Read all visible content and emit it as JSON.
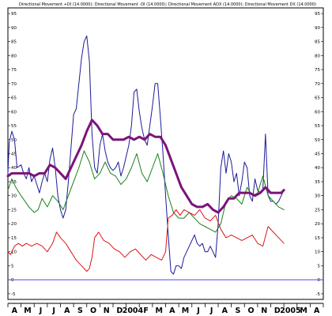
{
  "chart_data": {
    "type": "line",
    "title": "Directional Movement +DI (14.0000); Directional Movement -DI (14.0000); Directional Movement ADX (14.0000); Directional Movement DX (14.0000)",
    "ylim": [
      -7,
      97
    ],
    "yticks": [
      -5,
      0,
      5,
      10,
      15,
      20,
      25,
      30,
      35,
      40,
      45,
      50,
      55,
      60,
      65,
      70,
      75,
      80,
      85,
      90,
      95
    ],
    "xlim": [
      0,
      24
    ],
    "xticks": [
      {
        "x": 0.5,
        "label": "A"
      },
      {
        "x": 1.5,
        "label": "M"
      },
      {
        "x": 2.5,
        "label": "J"
      },
      {
        "x": 3.5,
        "label": "J"
      },
      {
        "x": 4.5,
        "label": "A"
      },
      {
        "x": 5.5,
        "label": "S"
      },
      {
        "x": 6.5,
        "label": "O"
      },
      {
        "x": 7.5,
        "label": "N"
      },
      {
        "x": 8.5,
        "label": "D"
      },
      {
        "x": 9.5,
        "label": "2004"
      },
      {
        "x": 10.5,
        "label": "F"
      },
      {
        "x": 11.5,
        "label": "M"
      },
      {
        "x": 12.5,
        "label": "A"
      },
      {
        "x": 13.5,
        "label": "M"
      },
      {
        "x": 14.5,
        "label": "J"
      },
      {
        "x": 15.5,
        "label": "J"
      },
      {
        "x": 16.5,
        "label": "A"
      },
      {
        "x": 17.5,
        "label": "S"
      },
      {
        "x": 18.5,
        "label": "O"
      },
      {
        "x": 19.5,
        "label": "N"
      },
      {
        "x": 20.5,
        "label": "D"
      },
      {
        "x": 21.5,
        "label": "2005"
      },
      {
        "x": 22.5,
        "label": "M"
      },
      {
        "x": 23.5,
        "label": "A"
      }
    ],
    "reference_line": {
      "y": 0,
      "color": "#4a4adf"
    },
    "grid": false,
    "legend": "none",
    "series": [
      {
        "color": "#1c1c9a",
        "width": 1,
        "points": [
          [
            0,
            38
          ],
          [
            0.1,
            49
          ],
          [
            0.3,
            53
          ],
          [
            0.5,
            50
          ],
          [
            0.7,
            40
          ],
          [
            1,
            41
          ],
          [
            1.2,
            38
          ],
          [
            1.4,
            36
          ],
          [
            1.6,
            40
          ],
          [
            1.8,
            35
          ],
          [
            2,
            37
          ],
          [
            2.2,
            34
          ],
          [
            2.4,
            31
          ],
          [
            2.6,
            35
          ],
          [
            2.8,
            38
          ],
          [
            3,
            35
          ],
          [
            3.2,
            43
          ],
          [
            3.4,
            47
          ],
          [
            3.6,
            40
          ],
          [
            3.8,
            30
          ],
          [
            4,
            25
          ],
          [
            4.2,
            22
          ],
          [
            4.4,
            25
          ],
          [
            4.6,
            35
          ],
          [
            4.8,
            47
          ],
          [
            5,
            59
          ],
          [
            5.2,
            61
          ],
          [
            5.4,
            70
          ],
          [
            5.6,
            79
          ],
          [
            5.8,
            85
          ],
          [
            6,
            87
          ],
          [
            6.2,
            78
          ],
          [
            6.4,
            52
          ],
          [
            6.6,
            40
          ],
          [
            6.8,
            38
          ],
          [
            7,
            48
          ],
          [
            7.2,
            52
          ],
          [
            7.4,
            46
          ],
          [
            7.6,
            42
          ],
          [
            7.8,
            40
          ],
          [
            8,
            39
          ],
          [
            8.2,
            40
          ],
          [
            8.4,
            42
          ],
          [
            8.6,
            37
          ],
          [
            8.8,
            40
          ],
          [
            9,
            44
          ],
          [
            9.2,
            48
          ],
          [
            9.4,
            55
          ],
          [
            9.6,
            67
          ],
          [
            9.8,
            68
          ],
          [
            10,
            60
          ],
          [
            10.2,
            54
          ],
          [
            10.4,
            50
          ],
          [
            10.6,
            48
          ],
          [
            10.8,
            55
          ],
          [
            11,
            62
          ],
          [
            11.2,
            70
          ],
          [
            11.4,
            70
          ],
          [
            11.6,
            58
          ],
          [
            11.8,
            45
          ],
          [
            12,
            30
          ],
          [
            12.2,
            16
          ],
          [
            12.4,
            3
          ],
          [
            12.6,
            2
          ],
          [
            12.8,
            5
          ],
          [
            13,
            5
          ],
          [
            13.2,
            4
          ],
          [
            13.4,
            8
          ],
          [
            13.6,
            10
          ],
          [
            13.8,
            12
          ],
          [
            14,
            14
          ],
          [
            14.2,
            16
          ],
          [
            14.4,
            13
          ],
          [
            14.6,
            12
          ],
          [
            14.8,
            13
          ],
          [
            15,
            10
          ],
          [
            15.2,
            10
          ],
          [
            15.4,
            12
          ],
          [
            15.6,
            10
          ],
          [
            15.8,
            8
          ],
          [
            16,
            20
          ],
          [
            16.2,
            40
          ],
          [
            16.4,
            46
          ],
          [
            16.6,
            38
          ],
          [
            16.8,
            45
          ],
          [
            17,
            42
          ],
          [
            17.2,
            35
          ],
          [
            17.4,
            38
          ],
          [
            17.6,
            30
          ],
          [
            17.8,
            35
          ],
          [
            18,
            42
          ],
          [
            18.2,
            40
          ],
          [
            18.4,
            30
          ],
          [
            18.6,
            28
          ],
          [
            18.8,
            36
          ],
          [
            19,
            32
          ],
          [
            19.2,
            31
          ],
          [
            19.4,
            32
          ],
          [
            19.6,
            52
          ],
          [
            19.8,
            30
          ],
          [
            20,
            28
          ],
          [
            20.2,
            28
          ],
          [
            20.4,
            27
          ],
          [
            20.6,
            28
          ],
          [
            20.8,
            30
          ],
          [
            21,
            32
          ]
        ]
      },
      {
        "color": "#1a801a",
        "width": 1,
        "points": [
          [
            0,
            32
          ],
          [
            0.3,
            36
          ],
          [
            0.6,
            33
          ],
          [
            1,
            30
          ],
          [
            1.3,
            28
          ],
          [
            1.6,
            26
          ],
          [
            2,
            24
          ],
          [
            2.3,
            25
          ],
          [
            2.6,
            29
          ],
          [
            3,
            26
          ],
          [
            3.4,
            30
          ],
          [
            3.8,
            28
          ],
          [
            4.2,
            25
          ],
          [
            4.6,
            30
          ],
          [
            5,
            35
          ],
          [
            5.4,
            40
          ],
          [
            5.8,
            46
          ],
          [
            6.2,
            42
          ],
          [
            6.6,
            36
          ],
          [
            7,
            38
          ],
          [
            7.4,
            42
          ],
          [
            7.8,
            38
          ],
          [
            8.2,
            37
          ],
          [
            8.6,
            34
          ],
          [
            9,
            36
          ],
          [
            9.4,
            40
          ],
          [
            9.8,
            45
          ],
          [
            10.2,
            38
          ],
          [
            10.6,
            35
          ],
          [
            11,
            40
          ],
          [
            11.4,
            45
          ],
          [
            11.8,
            38
          ],
          [
            12.2,
            30
          ],
          [
            12.6,
            24
          ],
          [
            13,
            22
          ],
          [
            13.4,
            22
          ],
          [
            13.8,
            24
          ],
          [
            14.2,
            22
          ],
          [
            14.6,
            20
          ],
          [
            15,
            19
          ],
          [
            15.4,
            18
          ],
          [
            15.8,
            17
          ],
          [
            16.2,
            20
          ],
          [
            16.6,
            28
          ],
          [
            17,
            30
          ],
          [
            17.4,
            29
          ],
          [
            17.8,
            27
          ],
          [
            18.2,
            33
          ],
          [
            18.6,
            30
          ],
          [
            19,
            31
          ],
          [
            19.4,
            37
          ],
          [
            19.8,
            30
          ],
          [
            20.2,
            28
          ],
          [
            20.6,
            26
          ],
          [
            21,
            25
          ]
        ]
      },
      {
        "color": "#e01414",
        "width": 1,
        "points": [
          [
            0,
            10
          ],
          [
            0.2,
            9
          ],
          [
            0.5,
            12
          ],
          [
            0.8,
            13
          ],
          [
            1.1,
            12
          ],
          [
            1.4,
            13
          ],
          [
            1.8,
            12
          ],
          [
            2.2,
            13
          ],
          [
            2.6,
            12
          ],
          [
            3,
            10
          ],
          [
            3.4,
            13
          ],
          [
            3.7,
            17
          ],
          [
            4,
            15
          ],
          [
            4.4,
            13
          ],
          [
            4.8,
            10
          ],
          [
            5.2,
            7
          ],
          [
            5.6,
            5
          ],
          [
            6,
            3
          ],
          [
            6.2,
            4
          ],
          [
            6.4,
            8
          ],
          [
            6.6,
            15
          ],
          [
            6.9,
            17
          ],
          [
            7.3,
            14
          ],
          [
            7.7,
            13
          ],
          [
            8.1,
            11
          ],
          [
            8.5,
            10
          ],
          [
            8.9,
            8
          ],
          [
            9.3,
            10
          ],
          [
            9.7,
            11
          ],
          [
            10.1,
            9
          ],
          [
            10.5,
            7
          ],
          [
            10.9,
            9
          ],
          [
            11.3,
            8
          ],
          [
            11.7,
            7
          ],
          [
            12,
            10
          ],
          [
            12.2,
            22
          ],
          [
            12.5,
            23
          ],
          [
            12.8,
            25
          ],
          [
            13.1,
            23
          ],
          [
            13.4,
            25
          ],
          [
            13.8,
            24
          ],
          [
            14.2,
            23
          ],
          [
            14.6,
            25
          ],
          [
            15,
            22
          ],
          [
            15.4,
            21
          ],
          [
            15.8,
            23
          ],
          [
            16.2,
            18
          ],
          [
            16.6,
            15
          ],
          [
            17,
            16
          ],
          [
            17.4,
            15
          ],
          [
            17.8,
            14
          ],
          [
            18.2,
            15
          ],
          [
            18.6,
            16
          ],
          [
            19,
            13
          ],
          [
            19.4,
            12
          ],
          [
            19.8,
            19
          ],
          [
            20.2,
            17
          ],
          [
            20.6,
            15
          ],
          [
            21,
            13
          ]
        ]
      },
      {
        "color": "#7b137b",
        "width": 3,
        "points": [
          [
            0,
            37
          ],
          [
            0.3,
            38
          ],
          [
            1,
            38
          ],
          [
            1.6,
            38
          ],
          [
            2,
            37
          ],
          [
            2.4,
            38
          ],
          [
            2.8,
            38
          ],
          [
            3.2,
            41
          ],
          [
            3.6,
            40
          ],
          [
            4,
            38
          ],
          [
            4.4,
            36
          ],
          [
            4.8,
            40
          ],
          [
            5.2,
            44
          ],
          [
            5.6,
            48
          ],
          [
            6,
            53
          ],
          [
            6.4,
            57
          ],
          [
            6.8,
            55
          ],
          [
            7.2,
            52
          ],
          [
            7.6,
            52
          ],
          [
            8,
            50
          ],
          [
            8.4,
            50
          ],
          [
            8.8,
            50
          ],
          [
            9.2,
            51
          ],
          [
            9.6,
            50
          ],
          [
            10,
            51
          ],
          [
            10.4,
            50
          ],
          [
            10.8,
            52
          ],
          [
            11.2,
            51
          ],
          [
            11.6,
            51
          ],
          [
            12,
            48
          ],
          [
            12.4,
            43
          ],
          [
            12.8,
            38
          ],
          [
            13.2,
            33
          ],
          [
            13.6,
            30
          ],
          [
            14,
            27
          ],
          [
            14.4,
            26
          ],
          [
            14.8,
            26
          ],
          [
            15.2,
            27
          ],
          [
            15.6,
            25
          ],
          [
            16,
            24
          ],
          [
            16.4,
            26
          ],
          [
            16.8,
            29
          ],
          [
            17.2,
            29
          ],
          [
            17.6,
            31
          ],
          [
            18,
            31
          ],
          [
            18.4,
            31
          ],
          [
            18.8,
            30
          ],
          [
            19.2,
            31
          ],
          [
            19.6,
            33
          ],
          [
            20,
            31
          ],
          [
            20.4,
            31
          ],
          [
            20.8,
            31
          ],
          [
            21,
            32
          ]
        ]
      }
    ]
  }
}
